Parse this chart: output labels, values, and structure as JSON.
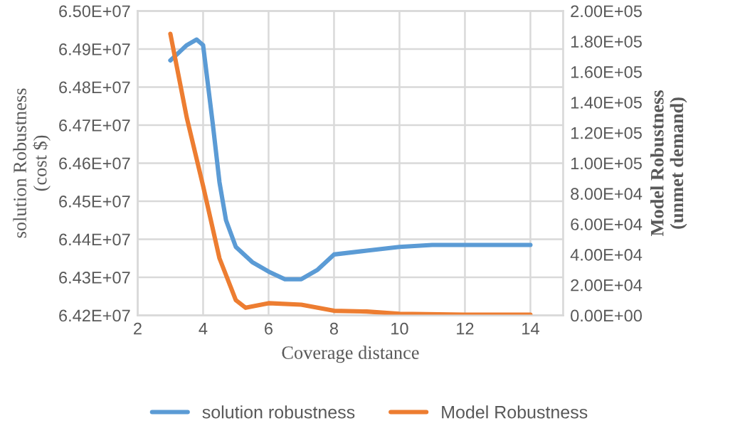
{
  "chart_data": {
    "type": "line",
    "xlabel": "Coverage distance",
    "ylabel": "solution Robustness\n(cost $)",
    "y2label": "Model Robustness\n(unmet demand)",
    "series": [
      {
        "name": "solution robustness",
        "color": "#5b9bd5",
        "x": [
          3,
          3.5,
          3.8,
          4,
          4.3,
          4.5,
          4.7,
          5,
          5.5,
          6,
          6.5,
          7,
          7.5,
          8,
          9,
          10,
          11,
          12,
          14
        ],
        "values": [
          64870000,
          64910000,
          64925000,
          64910000,
          64700000,
          64550000,
          64450000,
          64380000,
          64340000,
          64315000,
          64295000,
          64295000,
          64320000,
          64360000,
          64370000,
          64380000,
          64385000,
          64385000,
          64385000
        ]
      },
      {
        "name": "Model Robustness",
        "color": "#ed7d31",
        "axis": "y2",
        "x": [
          3,
          3.5,
          4,
          4.5,
          5,
          5.3,
          6,
          7,
          8,
          9,
          10,
          12,
          14
        ],
        "values": [
          185000,
          130000,
          85000,
          37500,
          10000,
          5000,
          8000,
          7000,
          3000,
          2500,
          1000,
          500,
          500
        ]
      }
    ],
    "xlim": [
      2,
      15
    ],
    "xticks": [
      2,
      4,
      6,
      8,
      10,
      12,
      14
    ],
    "ylim": [
      64200000,
      65000000
    ],
    "yticks": [
      {
        "value": 64200000,
        "label": "6.42E+07"
      },
      {
        "value": 64300000,
        "label": "6.43E+07"
      },
      {
        "value": 64400000,
        "label": "6.44E+07"
      },
      {
        "value": 64500000,
        "label": "6.45E+07"
      },
      {
        "value": 64600000,
        "label": "6.46E+07"
      },
      {
        "value": 64700000,
        "label": "6.47E+07"
      },
      {
        "value": 64800000,
        "label": "6.48E+07"
      },
      {
        "value": 64900000,
        "label": "6.49E+07"
      },
      {
        "value": 65000000,
        "label": "6.50E+07"
      }
    ],
    "y2lim": [
      0,
      200000
    ],
    "y2ticks": [
      {
        "value": 0,
        "label": "0.00E+00"
      },
      {
        "value": 20000,
        "label": "2.00E+04"
      },
      {
        "value": 40000,
        "label": "4.00E+04"
      },
      {
        "value": 60000,
        "label": "6.00E+04"
      },
      {
        "value": 80000,
        "label": "8.00E+04"
      },
      {
        "value": 100000,
        "label": "1.00E+05"
      },
      {
        "value": 120000,
        "label": "1.20E+05"
      },
      {
        "value": 140000,
        "label": "1.40E+05"
      },
      {
        "value": 160000,
        "label": "1.60E+05"
      },
      {
        "value": 180000,
        "label": "1.80E+05"
      },
      {
        "value": 200000,
        "label": "2.00E+05"
      }
    ],
    "grid": true,
    "legend": "bottom",
    "marker": "none",
    "line_style": "solid"
  }
}
